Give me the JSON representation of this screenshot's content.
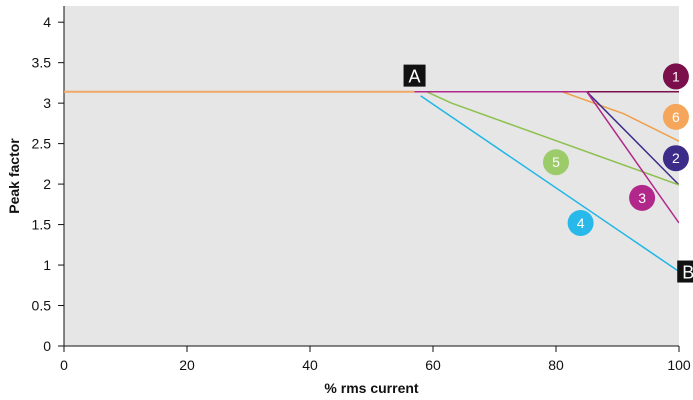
{
  "chart_data": {
    "type": "line",
    "title": "",
    "xlabel": "% rms current",
    "ylabel": "Peak factor",
    "xlim": [
      0,
      100
    ],
    "ylim": [
      0,
      4.2
    ],
    "x_ticks": [
      "0",
      "20",
      "40",
      "60",
      "80",
      "100"
    ],
    "y_ticks": [
      "0",
      "0.5",
      "1",
      "1.5",
      "2",
      "2.5",
      "3",
      "3.5",
      "4"
    ],
    "grid": false,
    "background": "#e6e6e6",
    "baseline": {
      "color": "#f2a869",
      "points": [
        [
          0,
          3.14
        ],
        [
          57,
          3.14
        ]
      ]
    },
    "series": [
      {
        "label": "1",
        "color": "#7a0f4c",
        "points": [
          [
            57,
            3.14
          ],
          [
            100,
            3.14
          ]
        ]
      },
      {
        "label": "6",
        "color": "#f0a04b",
        "points": [
          [
            57,
            3.14
          ],
          [
            81,
            3.14
          ],
          [
            91,
            2.87
          ],
          [
            100,
            2.53
          ]
        ]
      },
      {
        "label": "2",
        "color": "#3d2b8a",
        "points": [
          [
            57,
            3.14
          ],
          [
            85,
            3.14
          ],
          [
            100,
            1.99
          ]
        ]
      },
      {
        "label": "5",
        "color": "#8dc04f",
        "points": [
          [
            59,
            3.14
          ],
          [
            63,
            3.0
          ],
          [
            100,
            1.99
          ]
        ]
      },
      {
        "label": "3",
        "color": "#b1288a",
        "points": [
          [
            57,
            3.14
          ],
          [
            85,
            3.14
          ],
          [
            100,
            1.52
          ]
        ]
      },
      {
        "label": "4",
        "color": "#1fb6e6",
        "points": [
          [
            58,
            3.09
          ],
          [
            100,
            0.92
          ]
        ]
      }
    ],
    "curve_labels": [
      {
        "text": "1",
        "color": "#7a0f4c",
        "x": 99.5,
        "y": 3.33
      },
      {
        "text": "6",
        "color": "#f5a65b",
        "x": 99.5,
        "y": 2.83
      },
      {
        "text": "2",
        "color": "#3d2b8a",
        "x": 99.5,
        "y": 2.32
      },
      {
        "text": "5",
        "color": "#9ccc6a",
        "x": 80,
        "y": 2.27
      },
      {
        "text": "3",
        "color": "#b1288a",
        "x": 94,
        "y": 1.83
      },
      {
        "text": "4",
        "color": "#29b8ea",
        "x": 84,
        "y": 1.52
      }
    ],
    "point_labels": [
      {
        "text": "A",
        "x": 57,
        "y": 3.34
      },
      {
        "text": "B",
        "x": 101.5,
        "y": 0.92
      }
    ]
  }
}
